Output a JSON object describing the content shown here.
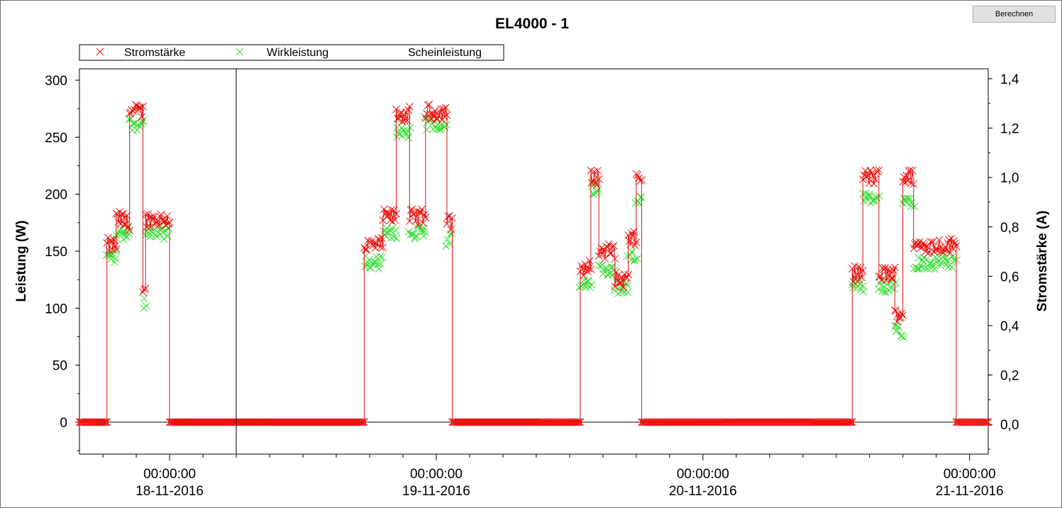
{
  "toolbar": {
    "calc_label": "Berechnen"
  },
  "chart_data": {
    "type": "scatter",
    "title": "EL4000 - 1",
    "ylabel": "Leistung (W)",
    "y2label": "Stromstärke (A)",
    "ylim": [
      -28,
      310
    ],
    "y2lim": [
      -0.12,
      1.44
    ],
    "yticks": [
      "-",
      "0",
      "50",
      "100",
      "150",
      "200",
      "250",
      "300"
    ],
    "y2ticks": [
      "0,0",
      "0,2",
      "0,4",
      "0,6",
      "0,8",
      "1,0",
      "1,2",
      "1,4"
    ],
    "xlim": [
      -0.338,
      3.07
    ],
    "xtick_times": [
      "00:00:00",
      "00:00:00",
      "00:00:00",
      "00:00:00"
    ],
    "xtick_dates": [
      "18-11-2016",
      "19-11-2016",
      "20-11-2016",
      "21-11-2016"
    ],
    "xtick_values": [
      0,
      1,
      2,
      3
    ],
    "cursor_x": 0.25,
    "legend_position": "top-left",
    "series": [
      {
        "name": "Stromstärke",
        "color": "#ee1111",
        "marker": "x",
        "axis": "right"
      },
      {
        "name": "Wirkleistung",
        "color": "#33dd33",
        "marker": "x",
        "axis": "left"
      },
      {
        "name": "Scheinleistung",
        "color": "#ffffff",
        "marker": "none",
        "axis": "left"
      }
    ],
    "segments": [
      {
        "x": [
          -0.338,
          -0.235
        ],
        "level_w": 0,
        "green_w": 0
      },
      {
        "x": [
          -0.235,
          -0.2
        ],
        "level_w": 155,
        "green_w": 145
      },
      {
        "x": [
          -0.2,
          -0.17
        ],
        "level_w": 178,
        "green_w": 165
      },
      {
        "x": [
          -0.17,
          -0.15
        ],
        "level_w": 175,
        "green_w": 168
      },
      {
        "x": [
          -0.15,
          -0.1
        ],
        "level_w": 272,
        "green_w": 262
      },
      {
        "x": [
          -0.1,
          -0.09
        ],
        "level_w": 120,
        "green_w": 105
      },
      {
        "x": [
          -0.09,
          0.0
        ],
        "level_w": 178,
        "green_w": 165
      },
      {
        "x": [
          0.0,
          0.73
        ],
        "level_w": 0,
        "green_w": 0
      },
      {
        "x": [
          0.73,
          0.8
        ],
        "level_w": 155,
        "green_w": 140
      },
      {
        "x": [
          0.8,
          0.85
        ],
        "level_w": 180,
        "green_w": 165
      },
      {
        "x": [
          0.85,
          0.9
        ],
        "level_w": 270,
        "green_w": 255
      },
      {
        "x": [
          0.9,
          0.96
        ],
        "level_w": 180,
        "green_w": 165
      },
      {
        "x": [
          0.96,
          1.04
        ],
        "level_w": 272,
        "green_w": 262
      },
      {
        "x": [
          1.04,
          1.06
        ],
        "level_w": 175,
        "green_w": 160
      },
      {
        "x": [
          1.06,
          1.54
        ],
        "level_w": 0,
        "green_w": 0
      },
      {
        "x": [
          1.54,
          1.58
        ],
        "level_w": 135,
        "green_w": 120
      },
      {
        "x": [
          1.58,
          1.61
        ],
        "level_w": 215,
        "green_w": 205
      },
      {
        "x": [
          1.61,
          1.67
        ],
        "level_w": 150,
        "green_w": 135
      },
      {
        "x": [
          1.67,
          1.72
        ],
        "level_w": 125,
        "green_w": 118
      },
      {
        "x": [
          1.72,
          1.75
        ],
        "level_w": 160,
        "green_w": 145
      },
      {
        "x": [
          1.75,
          1.77
        ],
        "level_w": 215,
        "green_w": 195
      },
      {
        "x": [
          1.77,
          2.56
        ],
        "level_w": 0,
        "green_w": 0
      },
      {
        "x": [
          2.56,
          2.6
        ],
        "level_w": 130,
        "green_w": 118
      },
      {
        "x": [
          2.6,
          2.66
        ],
        "level_w": 215,
        "green_w": 195
      },
      {
        "x": [
          2.66,
          2.72
        ],
        "level_w": 130,
        "green_w": 118
      },
      {
        "x": [
          2.72,
          2.75
        ],
        "level_w": 95,
        "green_w": 80
      },
      {
        "x": [
          2.75,
          2.79
        ],
        "level_w": 215,
        "green_w": 195
      },
      {
        "x": [
          2.79,
          2.95
        ],
        "level_w": 155,
        "green_w": 140
      },
      {
        "x": [
          2.95,
          3.07
        ],
        "level_w": 0,
        "green_w": 0
      }
    ]
  }
}
